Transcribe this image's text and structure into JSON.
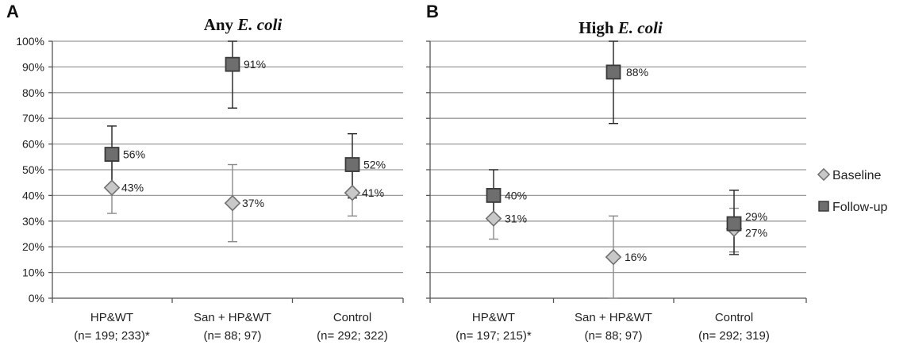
{
  "legend": {
    "baseline": "Baseline",
    "followup": "Follow-up"
  },
  "colors": {
    "baseline_fill": "#c8c8c8",
    "baseline_stroke": "#707070",
    "followup_fill": "#6e6e6e",
    "followup_stroke": "#3a3a3a",
    "gridline": "#9a9a9a",
    "baseline_error_bar": "#8a8a8a",
    "followup_error_bar": "#222222"
  },
  "chart_data": [
    {
      "type": "scatter",
      "panel_letter": "A",
      "title_prefix": "Any ",
      "title_italic": "E. coli",
      "ylim": [
        0,
        100
      ],
      "yticks": [
        "0%",
        "10%",
        "20%",
        "30%",
        "40%",
        "50%",
        "60%",
        "70%",
        "80%",
        "90%",
        "100%"
      ],
      "categories": [
        {
          "line1": "HP&WT",
          "line2": "(n= 199; 233)*"
        },
        {
          "line1": "San + HP&WT",
          "line2": "(n= 88; 97)"
        },
        {
          "line1": "Control",
          "line2": "(n= 292; 322)"
        }
      ],
      "series": [
        {
          "name": "Baseline",
          "values": [
            43,
            37,
            41
          ],
          "lower": [
            33,
            22,
            32
          ],
          "upper": [
            55,
            52,
            52
          ],
          "labels": [
            "43%",
            "37%",
            "41%"
          ]
        },
        {
          "name": "Follow-up",
          "values": [
            56,
            91,
            52
          ],
          "lower": [
            44,
            74,
            39
          ],
          "upper": [
            67,
            100,
            64
          ],
          "labels": [
            "56%",
            "91%",
            "52%"
          ]
        }
      ]
    },
    {
      "type": "scatter",
      "panel_letter": "B",
      "title_prefix": "High ",
      "title_italic": "E. coli",
      "ylim": [
        0,
        100
      ],
      "categories": [
        {
          "line1": "HP&WT",
          "line2": "(n= 197; 215)*"
        },
        {
          "line1": "San + HP&WT",
          "line2": "(n= 88; 97)"
        },
        {
          "line1": "Control",
          "line2": "(n= 292; 319)"
        }
      ],
      "series": [
        {
          "name": "Baseline",
          "values": [
            31,
            16,
            27
          ],
          "lower": [
            23,
            0,
            18
          ],
          "upper": [
            40,
            32,
            35
          ],
          "labels": [
            "31%",
            "16%",
            "27%"
          ]
        },
        {
          "name": "Follow-up",
          "values": [
            40,
            88,
            29
          ],
          "lower": [
            30,
            68,
            17
          ],
          "upper": [
            50,
            100,
            42
          ],
          "labels": [
            "40%",
            "88%",
            "29%"
          ]
        }
      ]
    }
  ]
}
